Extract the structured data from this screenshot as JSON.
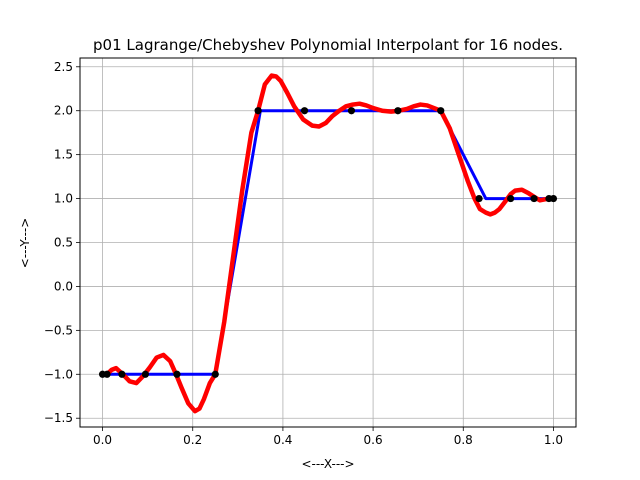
{
  "chart_data": {
    "type": "line",
    "title": "p01 Lagrange/Chebyshev Polynomial Interpolant for 16 nodes.",
    "xlabel": "<---X--->",
    "ylabel": "<---Y--->",
    "xlim": [
      -0.05,
      1.05
    ],
    "ylim": [
      -1.6,
      2.6
    ],
    "xticks": [
      0.0,
      0.2,
      0.4,
      0.6,
      0.8,
      1.0
    ],
    "xtick_labels": [
      "0.0",
      "0.2",
      "0.4",
      "0.6",
      "0.8",
      "1.0"
    ],
    "yticks": [
      -1.5,
      -1.0,
      -0.5,
      0.0,
      0.5,
      1.0,
      1.5,
      2.0,
      2.5
    ],
    "ytick_labels": [
      "−1.5",
      "−1.0",
      "−0.5",
      "0.0",
      "0.5",
      "1.0",
      "1.5",
      "2.0",
      "2.5"
    ],
    "grid": true,
    "series": [
      {
        "role": "data",
        "color": "#0000ff",
        "x": [
          0.0,
          0.1,
          0.25,
          0.35,
          0.5,
          0.75,
          0.85,
          1.0
        ],
        "y": [
          -1.0,
          -1.0,
          -1.0,
          2.0,
          2.0,
          2.0,
          1.0,
          1.0
        ]
      },
      {
        "role": "interpolant",
        "color": "#ff0000",
        "x": [
          0.0,
          0.01,
          0.02,
          0.03,
          0.045,
          0.06,
          0.075,
          0.09,
          0.105,
          0.12,
          0.135,
          0.15,
          0.163,
          0.175,
          0.19,
          0.205,
          0.215,
          0.225,
          0.238,
          0.25,
          0.27,
          0.29,
          0.31,
          0.33,
          0.345,
          0.36,
          0.375,
          0.385,
          0.395,
          0.41,
          0.425,
          0.445,
          0.465,
          0.48,
          0.495,
          0.51,
          0.525,
          0.54,
          0.555,
          0.57,
          0.585,
          0.6,
          0.62,
          0.64,
          0.657,
          0.675,
          0.69,
          0.705,
          0.72,
          0.735,
          0.75,
          0.77,
          0.79,
          0.81,
          0.825,
          0.837,
          0.85,
          0.86,
          0.87,
          0.88,
          0.895,
          0.905,
          0.915,
          0.93,
          0.945,
          0.96,
          0.97,
          0.98,
          0.99,
          1.0
        ],
        "y": [
          -1.0,
          -1.0,
          -0.95,
          -0.93,
          -1.0,
          -1.08,
          -1.1,
          -1.02,
          -0.92,
          -0.81,
          -0.78,
          -0.85,
          -1.0,
          -1.15,
          -1.33,
          -1.42,
          -1.39,
          -1.28,
          -1.1,
          -1.0,
          -0.4,
          0.35,
          1.1,
          1.75,
          2.0,
          2.3,
          2.4,
          2.39,
          2.34,
          2.2,
          2.05,
          1.9,
          1.83,
          1.82,
          1.86,
          1.94,
          2.0,
          2.05,
          2.07,
          2.08,
          2.06,
          2.03,
          2.0,
          1.99,
          2.0,
          2.02,
          2.05,
          2.07,
          2.06,
          2.03,
          2.0,
          1.8,
          1.5,
          1.2,
          1.0,
          0.88,
          0.84,
          0.82,
          0.84,
          0.88,
          0.98,
          1.05,
          1.09,
          1.1,
          1.06,
          1.01,
          0.98,
          0.99,
          1.0,
          1.0
        ]
      },
      {
        "role": "nodes",
        "color": "#000000",
        "x": [
          0.0,
          0.01,
          0.043,
          0.095,
          0.165,
          0.25,
          0.345,
          0.448,
          0.552,
          0.655,
          0.75,
          0.835,
          0.905,
          0.957,
          0.99,
          1.0
        ],
        "y": [
          -1.0,
          -1.0,
          -1.0,
          -1.0,
          -1.0,
          -1.0,
          2.0,
          2.0,
          2.0,
          2.0,
          2.0,
          1.0,
          1.0,
          1.0,
          1.0,
          1.0
        ]
      }
    ]
  }
}
